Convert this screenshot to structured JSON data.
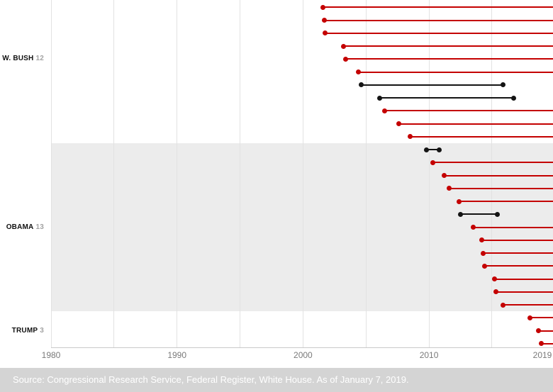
{
  "footer": {
    "source": "Source: Congressional Research Service, Federal Register, White House. As of January 7, 2019."
  },
  "colors": {
    "ongoing_red": "#c40000",
    "ended_black": "#141414",
    "highlight_band": "#ececec",
    "gridline": "#e2e2e2",
    "axis_line": "#c9c9c9",
    "axis_text": "#7a7a7a",
    "president_text": "#111111",
    "count_text": "#a3a3a3",
    "footer_bg": "#d4d4d4",
    "footer_text": "#ffffff"
  },
  "chart_data": {
    "type": "dumbbell",
    "title": "",
    "xlabel": "",
    "ylabel": "",
    "legend": {
      "ongoing": "red line extending past right edge (still in effect)",
      "ended": "black line with start and end dots (terminated)"
    },
    "x_axis": {
      "range": [
        1980,
        2019
      ],
      "tick_years": [
        1980,
        1990,
        2000,
        2010,
        2019
      ],
      "tick_labels": [
        "1980",
        "1990",
        "2000",
        "2010",
        "2019"
      ],
      "gridline_years": [
        1980,
        1985,
        1990,
        1995,
        2000,
        2005,
        2010,
        2015
      ]
    },
    "groups": [
      {
        "label": "W. BUSH",
        "count": "12",
        "highlighted": false,
        "rows": [
          {
            "start": 2001.5,
            "end": null
          },
          {
            "start": 2001.6,
            "end": null
          },
          {
            "start": 2001.7,
            "end": null
          },
          {
            "start": 2001.75,
            "end": null
          },
          {
            "start": 2003.2,
            "end": null
          },
          {
            "start": 2003.4,
            "end": null
          },
          {
            "start": 2004.4,
            "end": null
          },
          {
            "start": 2004.6,
            "end": 2015.9
          },
          {
            "start": 2006.1,
            "end": 2016.7
          },
          {
            "start": 2006.5,
            "end": null
          },
          {
            "start": 2007.6,
            "end": null
          },
          {
            "start": 2008.5,
            "end": null
          }
        ]
      },
      {
        "label": "OBAMA",
        "count": "13",
        "highlighted": true,
        "rows": [
          {
            "start": 2009.8,
            "end": 2010.8
          },
          {
            "start": 2010.3,
            "end": null
          },
          {
            "start": 2011.2,
            "end": null
          },
          {
            "start": 2011.6,
            "end": null
          },
          {
            "start": 2012.4,
            "end": null
          },
          {
            "start": 2012.5,
            "end": 2015.4
          },
          {
            "start": 2013.5,
            "end": null
          },
          {
            "start": 2014.2,
            "end": null
          },
          {
            "start": 2014.3,
            "end": null
          },
          {
            "start": 2014.4,
            "end": null
          },
          {
            "start": 2015.2,
            "end": null
          },
          {
            "start": 2015.3,
            "end": null
          },
          {
            "start": 2015.9,
            "end": null
          }
        ]
      },
      {
        "label": "TRUMP",
        "count": "3",
        "highlighted": false,
        "rows": [
          {
            "start": 2018.0,
            "end": null
          },
          {
            "start": 2018.7,
            "end": null
          },
          {
            "start": 2018.9,
            "end": null
          }
        ]
      }
    ]
  }
}
